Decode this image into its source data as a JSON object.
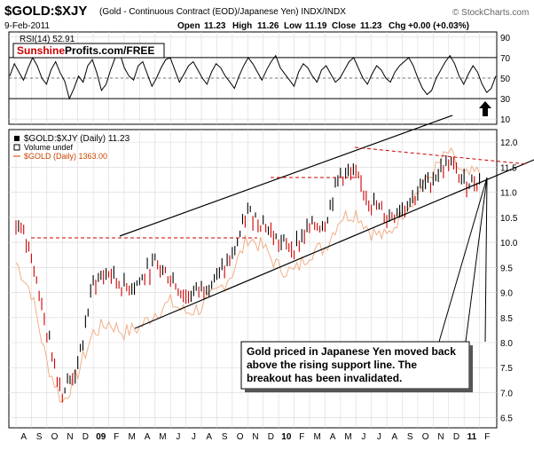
{
  "header": {
    "symbol": "$GOLD:$XJY",
    "description": "(Gold - Continuous Contract (EOD)/Japanese Yen) INDX/INDX",
    "watermark": "© StockCharts.com",
    "date": "9-Feb-2011",
    "ohlc": {
      "open_label": "Open",
      "open": "11.23",
      "high_label": "High",
      "high": "11.26",
      "low_label": "Low",
      "low": "11.19",
      "close_label": "Close",
      "close": "11.23",
      "chg_label": "Chg",
      "chg": "+0.00 (+0.03%)"
    }
  },
  "rsi_panel": {
    "label": "RSI(14) 52.91",
    "brand_red": "Sunshine",
    "brand_black": "Profits.com/FREE",
    "ticks": [
      "90",
      "70",
      "50",
      "30",
      "10"
    ],
    "tick_values": [
      90,
      70,
      50,
      30,
      10
    ],
    "ylim": [
      5,
      95
    ],
    "reference_lines": [
      70,
      50,
      30
    ]
  },
  "price_panel": {
    "legend": [
      {
        "label": "$GOLD:$XJY (Daily) 11.23",
        "color": "#000000"
      },
      {
        "label": "Volume undef",
        "color": "#000000"
      },
      {
        "label": "$GOLD (Daily) 1363.00",
        "color": "#e8a070"
      }
    ],
    "ticks": [
      "12.0",
      "11.5",
      "11.0",
      "10.5",
      "10.0",
      "9.5",
      "9.0",
      "8.5",
      "8.0",
      "7.5",
      "7.0",
      "6.5"
    ],
    "tick_values": [
      12.0,
      11.5,
      11.0,
      10.5,
      10.0,
      9.5,
      9.0,
      8.5,
      8.0,
      7.5,
      7.0,
      6.5
    ],
    "ylim": [
      6.3,
      12.25
    ],
    "annotation": "Gold priced in Japanese Yen moved back above the rising support line. The breakout has been invalidated."
  },
  "x_axis": {
    "labels": [
      "A",
      "S",
      "O",
      "N",
      "D",
      "09",
      "F",
      "M",
      "A",
      "M",
      "J",
      "J",
      "A",
      "S",
      "O",
      "N",
      "D",
      "10",
      "F",
      "M",
      "A",
      "M",
      "J",
      "J",
      "A",
      "S",
      "O",
      "N",
      "D",
      "11",
      "F"
    ],
    "bold": [
      "09",
      "10",
      "11"
    ]
  },
  "colors": {
    "price_up": "#000000",
    "price_down": "#cc0000",
    "gold_usd_line": "#f0b088",
    "rsi_line": "#000000",
    "dashed_resistance": "#cc0000",
    "brand_red": "#cc0000",
    "grid": "#d8d8d8"
  },
  "chart_data": [
    {
      "type": "line",
      "panel": "rsi",
      "series": [
        {
          "values": [
            52,
            64,
            56,
            48,
            60,
            70,
            62,
            50,
            44,
            58,
            66,
            55,
            47,
            30,
            40,
            52,
            46,
            62,
            68,
            55,
            38,
            44,
            58,
            70,
            74,
            60,
            52,
            48,
            62,
            66,
            54,
            42,
            50,
            60,
            68,
            70,
            58,
            46,
            54,
            62,
            66,
            58,
            50,
            44,
            56,
            64,
            60,
            52,
            46,
            40,
            52,
            62,
            70,
            64,
            56,
            48,
            58,
            66,
            72,
            60,
            54,
            48,
            42,
            56,
            64,
            60,
            52,
            46,
            58,
            62,
            54,
            46,
            50,
            58,
            66,
            70,
            60,
            50,
            44,
            54,
            62,
            58,
            50,
            46,
            56,
            62,
            66,
            70,
            62,
            50,
            40,
            34,
            38,
            50,
            58,
            66,
            72,
            64,
            52,
            44,
            54,
            62,
            56,
            44,
            36,
            40,
            52
          ]
        }
      ]
    },
    {
      "type": "line",
      "panel": "price",
      "x": [
        "2008-08",
        "2008-09",
        "2008-10",
        "2008-11",
        "2008-12",
        "2009-01",
        "2009-02",
        "2009-03",
        "2009-04",
        "2009-05",
        "2009-06",
        "2009-07",
        "2009-08",
        "2009-09",
        "2009-10",
        "2009-11",
        "2009-12",
        "2010-01",
        "2010-02",
        "2010-03",
        "2010-04",
        "2010-05",
        "2010-06",
        "2010-07",
        "2010-08",
        "2010-09",
        "2010-10",
        "2010-11",
        "2010-12",
        "2011-01",
        "2011-02"
      ],
      "series": [
        {
          "name": "$GOLD:$XJY (Daily) 11.23",
          "values": [
            10.4,
            9.8,
            8.2,
            7.0,
            7.5,
            9.2,
            9.4,
            9.1,
            9.2,
            9.6,
            9.3,
            8.9,
            9.1,
            9.3,
            9.7,
            10.6,
            10.4,
            10.0,
            9.9,
            10.3,
            10.4,
            11.4,
            11.3,
            10.8,
            10.5,
            10.7,
            11.0,
            11.3,
            11.6,
            11.2,
            11.23
          ]
        },
        {
          "name": "$GOLD (Daily) 1363.00",
          "values": [
            9.6,
            9.0,
            7.6,
            6.8,
            7.4,
            8.2,
            8.4,
            8.2,
            8.3,
            8.6,
            8.8,
            8.6,
            8.7,
            9.0,
            9.4,
            10.1,
            9.9,
            9.5,
            9.4,
            9.8,
            9.9,
            10.5,
            10.6,
            10.2,
            10.1,
            10.6,
            11.0,
            11.4,
            11.8,
            11.3,
            11.4
          ]
        }
      ],
      "ylim": [
        6.3,
        12.25
      ]
    }
  ]
}
